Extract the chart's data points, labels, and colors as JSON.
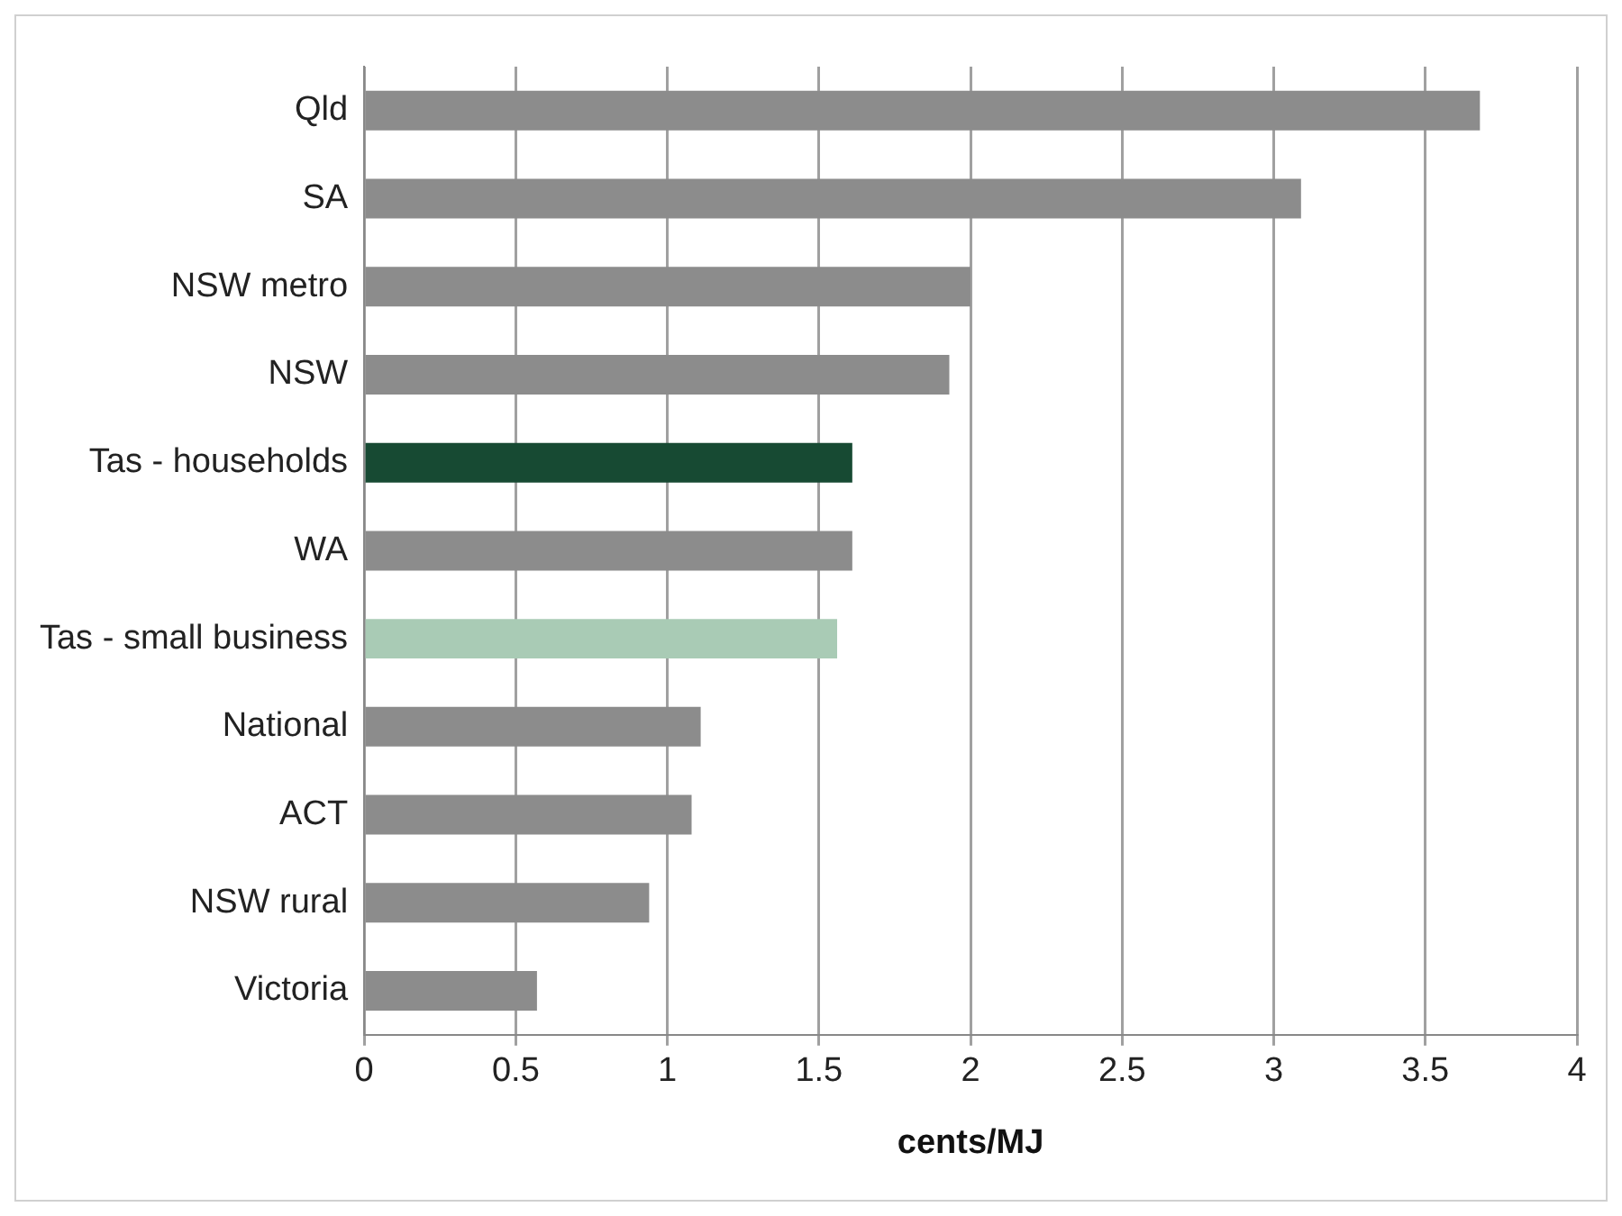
{
  "chart_data": {
    "type": "bar",
    "orientation": "horizontal",
    "xlabel": "cents/MJ",
    "categories": [
      "Qld",
      "SA",
      "NSW metro",
      "NSW",
      "Tas - households",
      "WA",
      "Tas - small business",
      "National",
      "ACT",
      "NSW rural",
      "Victoria"
    ],
    "values": [
      3.68,
      3.09,
      2.0,
      1.93,
      1.61,
      1.61,
      1.56,
      1.11,
      1.08,
      0.94,
      0.57
    ],
    "colors": [
      "#8c8c8c",
      "#8c8c8c",
      "#8c8c8c",
      "#8c8c8c",
      "#174a33",
      "#8c8c8c",
      "#a9cbb5",
      "#8c8c8c",
      "#8c8c8c",
      "#8c8c8c",
      "#8c8c8c"
    ],
    "xlim": [
      0,
      4
    ],
    "xticks": [
      0,
      0.5,
      1,
      1.5,
      2,
      2.5,
      3,
      3.5,
      4
    ],
    "grid": "x",
    "legend": false
  }
}
